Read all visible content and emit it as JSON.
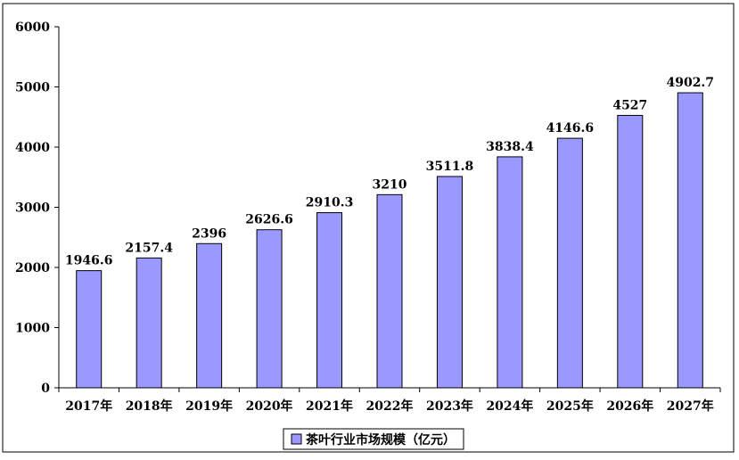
{
  "chart_data": {
    "type": "bar",
    "categories": [
      "2017年",
      "2018年",
      "2019年",
      "2020年",
      "2021年",
      "2022年",
      "2023年",
      "2024年",
      "2025年",
      "2026年",
      "2027年"
    ],
    "series": [
      {
        "name": "茶叶行业市场规模（亿元）",
        "values": [
          1946.6,
          2157.4,
          2396,
          2626.6,
          2910.3,
          3210,
          3511.8,
          3838.4,
          4146.6,
          4527,
          4902.7
        ],
        "value_labels": [
          "1946.6",
          "2157.4",
          "2396",
          "2626.6",
          "2910.3",
          "3210",
          "3511.8",
          "3838.4",
          "4146.6",
          "4527",
          "4902.7"
        ],
        "color": "#9999ff"
      }
    ],
    "title": "",
    "xlabel": "",
    "ylabel": "",
    "ylim": [
      0,
      6000
    ],
    "yticks": [
      0,
      1000,
      2000,
      3000,
      4000,
      5000,
      6000
    ],
    "ytick_labels": [
      "0",
      "1000",
      "2000",
      "3000",
      "4000",
      "5000",
      "6000"
    ],
    "grid": false,
    "legend_position": "bottom-center"
  }
}
